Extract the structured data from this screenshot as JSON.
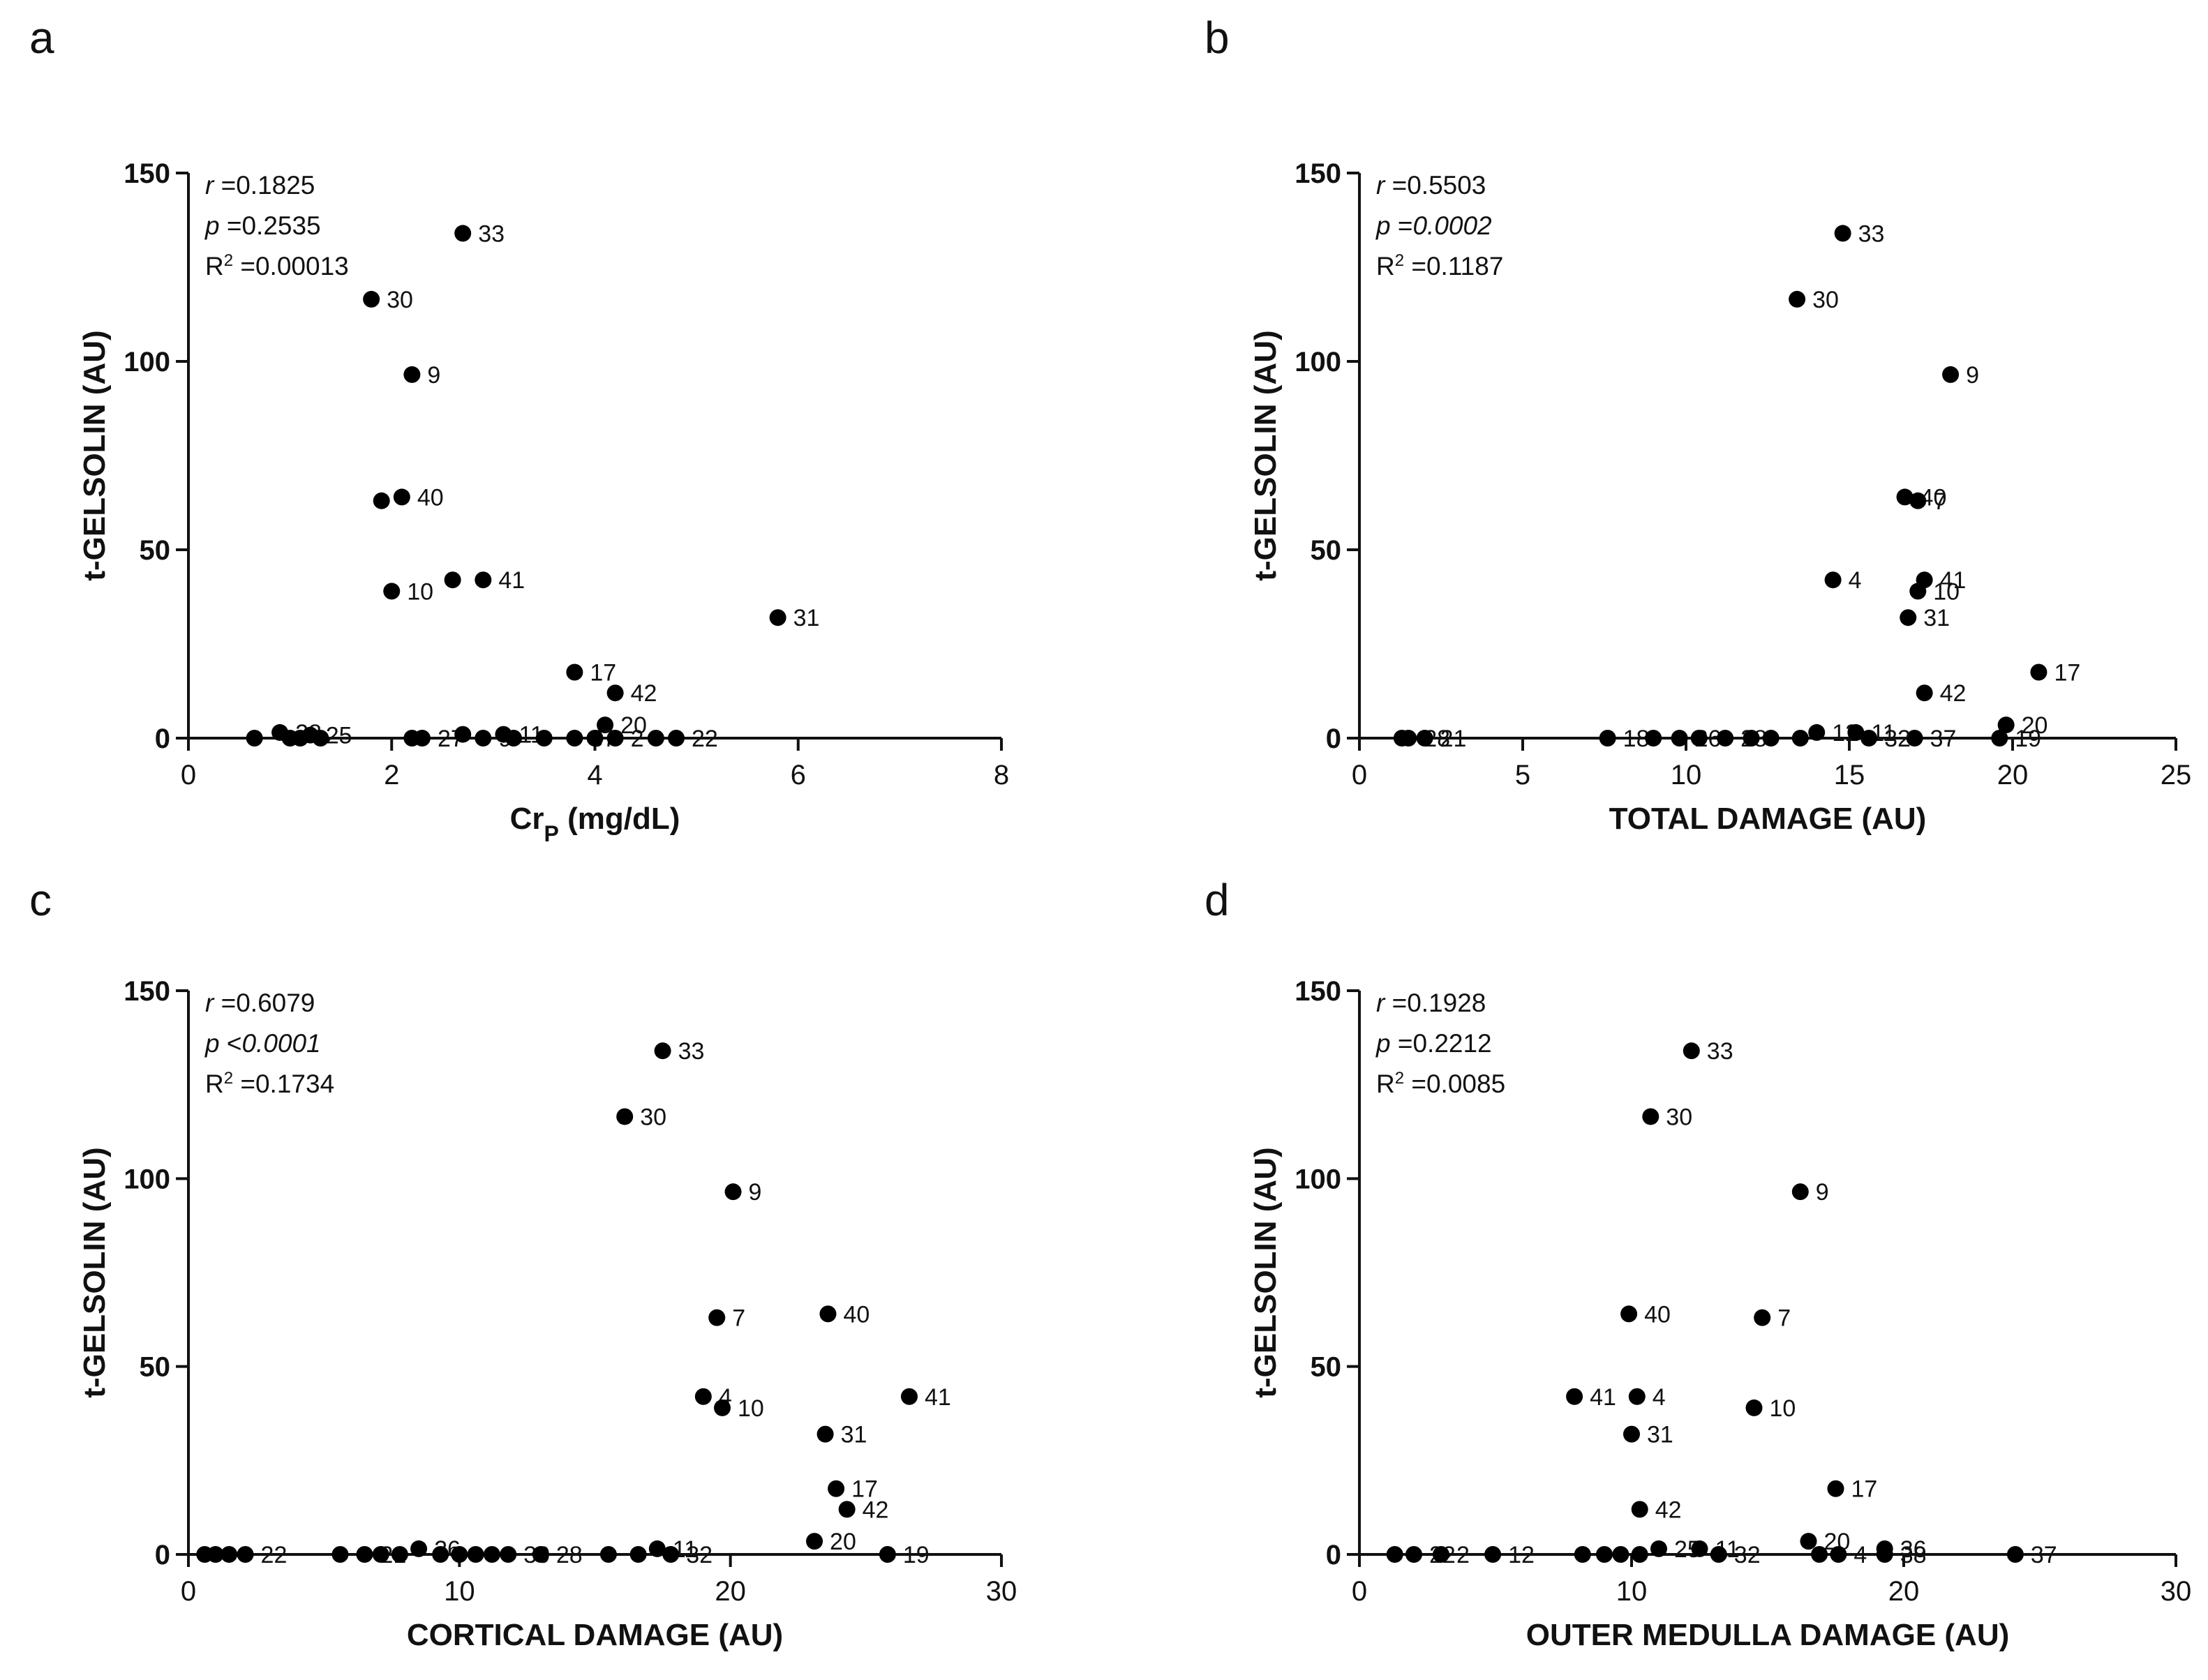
{
  "chart_data": [
    {
      "type": "scatter",
      "panel": "a",
      "xlabel": "Cr",
      "xlabel_sub": "P",
      "xlabel_suffix": " (mg/dL)",
      "ylabel": "t-GELSOLIN (AU)",
      "xlim": [
        0,
        8
      ],
      "ylim": [
        0,
        150
      ],
      "xticks": [
        0,
        2,
        4,
        6,
        8
      ],
      "yticks": [
        0,
        50,
        100,
        150
      ],
      "stats": {
        "r": "0.1825",
        "p_op": "=",
        "p": "0.2535",
        "p_italic": false,
        "r2": "0.00013"
      },
      "points": [
        {
          "x": 2.7,
          "y": 134,
          "label": "33"
        },
        {
          "x": 1.8,
          "y": 116.5,
          "label": "30"
        },
        {
          "x": 2.2,
          "y": 96.5,
          "label": "9"
        },
        {
          "x": 2.1,
          "y": 64,
          "label": "40"
        },
        {
          "x": 1.9,
          "y": 63,
          "label": ""
        },
        {
          "x": 2.9,
          "y": 42,
          "label": "41"
        },
        {
          "x": 2.6,
          "y": 42,
          "label": ""
        },
        {
          "x": 2.0,
          "y": 39,
          "label": "10"
        },
        {
          "x": 5.8,
          "y": 32,
          "label": "31"
        },
        {
          "x": 3.8,
          "y": 17.5,
          "label": "17"
        },
        {
          "x": 4.2,
          "y": 12,
          "label": "42"
        },
        {
          "x": 4.1,
          "y": 3.5,
          "label": "20"
        },
        {
          "x": 0.65,
          "y": 0,
          "label": ""
        },
        {
          "x": 0.9,
          "y": 1.5,
          "label": "28"
        },
        {
          "x": 1.0,
          "y": 0,
          "label": ""
        },
        {
          "x": 1.1,
          "y": 0,
          "label": ""
        },
        {
          "x": 1.2,
          "y": 0.8,
          "label": "25"
        },
        {
          "x": 1.3,
          "y": 0,
          "label": ""
        },
        {
          "x": 2.2,
          "y": 0,
          "label": ""
        },
        {
          "x": 2.3,
          "y": 0,
          "label": "27"
        },
        {
          "x": 2.7,
          "y": 1,
          "label": ""
        },
        {
          "x": 2.9,
          "y": 0,
          "label": "9"
        },
        {
          "x": 3.1,
          "y": 1,
          "label": "11"
        },
        {
          "x": 3.2,
          "y": 0,
          "label": ""
        },
        {
          "x": 3.5,
          "y": 0,
          "label": ""
        },
        {
          "x": 3.8,
          "y": 0,
          "label": "37"
        },
        {
          "x": 4.0,
          "y": 0,
          "label": ""
        },
        {
          "x": 4.2,
          "y": 0,
          "label": "2"
        },
        {
          "x": 4.6,
          "y": 0,
          "label": ""
        },
        {
          "x": 4.8,
          "y": 0,
          "label": "22"
        }
      ]
    },
    {
      "type": "scatter",
      "panel": "b",
      "xlabel": "TOTAL DAMAGE (AU)",
      "xlabel_sub": "",
      "xlabel_suffix": "",
      "ylabel": "t-GELSOLIN (AU)",
      "xlim": [
        0,
        25
      ],
      "ylim": [
        0,
        150
      ],
      "xticks": [
        0,
        5,
        10,
        15,
        20,
        25
      ],
      "yticks": [
        0,
        50,
        100,
        150
      ],
      "stats": {
        "r": "0.5503",
        "p_op": "=",
        "p": "0.0002",
        "p_italic": true,
        "r2": "0.1187"
      },
      "points": [
        {
          "x": 14.8,
          "y": 134,
          "label": "33"
        },
        {
          "x": 13.4,
          "y": 116.5,
          "label": "30"
        },
        {
          "x": 18.1,
          "y": 96.5,
          "label": "9"
        },
        {
          "x": 16.7,
          "y": 64,
          "label": "40"
        },
        {
          "x": 17.1,
          "y": 63,
          "label": "7"
        },
        {
          "x": 17.3,
          "y": 42,
          "label": "41"
        },
        {
          "x": 14.5,
          "y": 42,
          "label": "4"
        },
        {
          "x": 17.1,
          "y": 39,
          "label": "10"
        },
        {
          "x": 16.8,
          "y": 32,
          "label": "31"
        },
        {
          "x": 20.8,
          "y": 17.5,
          "label": "17"
        },
        {
          "x": 17.3,
          "y": 12,
          "label": "42"
        },
        {
          "x": 19.8,
          "y": 3.5,
          "label": "20"
        },
        {
          "x": 19.6,
          "y": 0,
          "label": "19"
        },
        {
          "x": 17.0,
          "y": 0,
          "label": "37"
        },
        {
          "x": 1.3,
          "y": 0,
          "label": ""
        },
        {
          "x": 1.5,
          "y": 0,
          "label": "28"
        },
        {
          "x": 2.0,
          "y": 0,
          "label": "21"
        },
        {
          "x": 7.6,
          "y": 0,
          "label": "18"
        },
        {
          "x": 9.0,
          "y": 0,
          "label": ""
        },
        {
          "x": 9.8,
          "y": 0,
          "label": "26"
        },
        {
          "x": 10.4,
          "y": 0,
          "label": ""
        },
        {
          "x": 11.2,
          "y": 0,
          "label": "28"
        },
        {
          "x": 12.0,
          "y": 0,
          "label": ""
        },
        {
          "x": 12.6,
          "y": 0,
          "label": ""
        },
        {
          "x": 13.5,
          "y": 0,
          "label": ""
        },
        {
          "x": 14.0,
          "y": 1.5,
          "label": "12"
        },
        {
          "x": 15.2,
          "y": 1.5,
          "label": "11"
        },
        {
          "x": 15.6,
          "y": 0,
          "label": "32"
        }
      ]
    },
    {
      "type": "scatter",
      "panel": "c",
      "xlabel": "CORTICAL DAMAGE (AU)",
      "xlabel_sub": "",
      "xlabel_suffix": "",
      "ylabel": "t-GELSOLIN (AU)",
      "xlim": [
        0,
        30
      ],
      "ylim": [
        0,
        150
      ],
      "xticks": [
        0,
        10,
        20,
        30
      ],
      "yticks": [
        0,
        50,
        100,
        150
      ],
      "stats": {
        "r": "0.6079",
        "p_op": "<",
        "p": "0.0001",
        "p_italic": true,
        "r2": "0.1734"
      },
      "points": [
        {
          "x": 17.5,
          "y": 134,
          "label": "33"
        },
        {
          "x": 16.1,
          "y": 116.5,
          "label": "30"
        },
        {
          "x": 20.1,
          "y": 96.5,
          "label": "9"
        },
        {
          "x": 19.5,
          "y": 63,
          "label": "7"
        },
        {
          "x": 23.6,
          "y": 64,
          "label": "40"
        },
        {
          "x": 26.6,
          "y": 42,
          "label": "41"
        },
        {
          "x": 19.0,
          "y": 42,
          "label": "4"
        },
        {
          "x": 19.7,
          "y": 39,
          "label": "10"
        },
        {
          "x": 23.5,
          "y": 32,
          "label": "31"
        },
        {
          "x": 23.9,
          "y": 17.5,
          "label": "17"
        },
        {
          "x": 24.3,
          "y": 12,
          "label": "42"
        },
        {
          "x": 23.1,
          "y": 3.5,
          "label": "20"
        },
        {
          "x": 25.8,
          "y": 0,
          "label": "19"
        },
        {
          "x": 0.6,
          "y": 0,
          "label": ""
        },
        {
          "x": 1.0,
          "y": 0,
          "label": ""
        },
        {
          "x": 1.5,
          "y": 0,
          "label": ""
        },
        {
          "x": 2.1,
          "y": 0,
          "label": "22"
        },
        {
          "x": 5.6,
          "y": 0,
          "label": ""
        },
        {
          "x": 6.5,
          "y": 0,
          "label": "21"
        },
        {
          "x": 7.1,
          "y": 0,
          "label": ""
        },
        {
          "x": 7.8,
          "y": 0,
          "label": ""
        },
        {
          "x": 8.5,
          "y": 1.5,
          "label": "26"
        },
        {
          "x": 9.3,
          "y": 0,
          "label": ""
        },
        {
          "x": 10.0,
          "y": 0,
          "label": ""
        },
        {
          "x": 10.6,
          "y": 0,
          "label": ""
        },
        {
          "x": 11.2,
          "y": 0,
          "label": ""
        },
        {
          "x": 11.8,
          "y": 0,
          "label": "30"
        },
        {
          "x": 13.0,
          "y": 0,
          "label": "28"
        },
        {
          "x": 15.5,
          "y": 0,
          "label": ""
        },
        {
          "x": 16.6,
          "y": 0,
          "label": ""
        },
        {
          "x": 17.3,
          "y": 1.5,
          "label": "11"
        },
        {
          "x": 17.8,
          "y": 0,
          "label": "32"
        }
      ]
    },
    {
      "type": "scatter",
      "panel": "d",
      "xlabel": "OUTER MEDULLA DAMAGE (AU)",
      "xlabel_sub": "",
      "xlabel_suffix": "",
      "ylabel": "t-GELSOLIN (AU)",
      "xlim": [
        0,
        30
      ],
      "ylim": [
        0,
        150
      ],
      "xticks": [
        0,
        10,
        20,
        30
      ],
      "yticks": [
        0,
        50,
        100,
        150
      ],
      "stats": {
        "r": "0.1928",
        "p_op": "=",
        "p": "0.2212",
        "p_italic": false,
        "r2": "0.0085"
      },
      "points": [
        {
          "x": 12.2,
          "y": 134,
          "label": "33"
        },
        {
          "x": 10.7,
          "y": 116.5,
          "label": "30"
        },
        {
          "x": 16.2,
          "y": 96.5,
          "label": "9"
        },
        {
          "x": 14.8,
          "y": 63,
          "label": "7"
        },
        {
          "x": 9.9,
          "y": 64,
          "label": "40"
        },
        {
          "x": 7.9,
          "y": 42,
          "label": "41"
        },
        {
          "x": 10.2,
          "y": 42,
          "label": "4"
        },
        {
          "x": 14.5,
          "y": 39,
          "label": "10"
        },
        {
          "x": 10.0,
          "y": 32,
          "label": "31"
        },
        {
          "x": 17.5,
          "y": 17.5,
          "label": "17"
        },
        {
          "x": 10.3,
          "y": 12,
          "label": "42"
        },
        {
          "x": 16.5,
          "y": 3.5,
          "label": "20"
        },
        {
          "x": 24.1,
          "y": 0,
          "label": "37"
        },
        {
          "x": 19.3,
          "y": 1.5,
          "label": "36"
        },
        {
          "x": 1.3,
          "y": 0,
          "label": ""
        },
        {
          "x": 2.0,
          "y": 0,
          "label": "22"
        },
        {
          "x": 3.0,
          "y": 0,
          "label": "2"
        },
        {
          "x": 4.9,
          "y": 0,
          "label": "12"
        },
        {
          "x": 8.2,
          "y": 0,
          "label": ""
        },
        {
          "x": 9.0,
          "y": 0,
          "label": ""
        },
        {
          "x": 9.6,
          "y": 0,
          "label": ""
        },
        {
          "x": 10.3,
          "y": 0,
          "label": ""
        },
        {
          "x": 11.0,
          "y": 1.5,
          "label": "25"
        },
        {
          "x": 12.5,
          "y": 1.5,
          "label": "11"
        },
        {
          "x": 13.2,
          "y": 0,
          "label": "32"
        },
        {
          "x": 16.9,
          "y": 0,
          "label": ""
        },
        {
          "x": 17.6,
          "y": 0,
          "label": "4"
        },
        {
          "x": 19.3,
          "y": 0,
          "label": "38"
        }
      ]
    }
  ]
}
